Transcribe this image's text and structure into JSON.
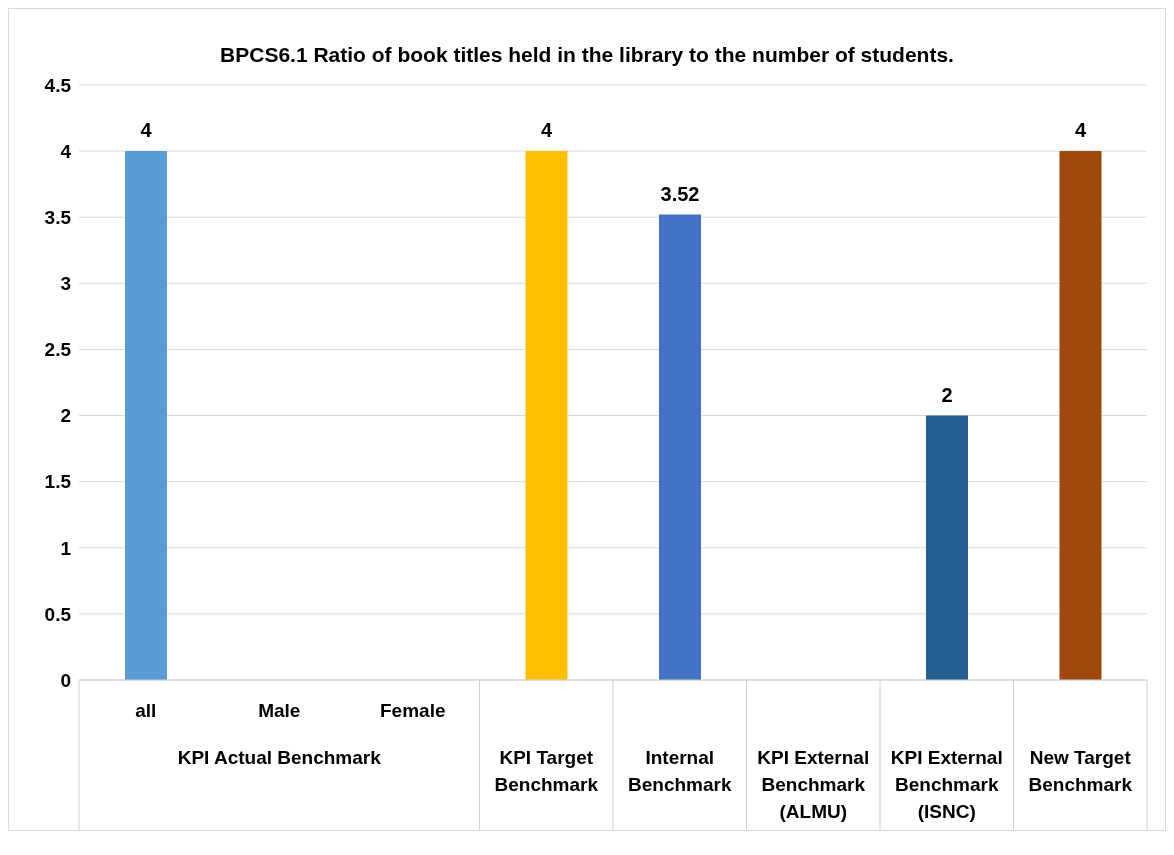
{
  "chart_data": {
    "type": "bar",
    "title": "BPCS6.1 Ratio of book titles held in the library to the number of students.",
    "categories": [
      "all",
      "Male",
      "Female",
      "KPI Target Benchmark",
      "Internal Benchmark",
      "KPI External Benchmark (ALMU)",
      "KPI External Benchmark (ISNC)",
      "New Target Benchmark"
    ],
    "values": [
      4,
      null,
      null,
      4,
      3.52,
      null,
      2,
      4
    ],
    "colors": [
      "#5b9bd5",
      "#5b9bd5",
      "#5b9bd5",
      "#ffc000",
      "#4472c4",
      "#4472c4",
      "#255e91",
      "#9e480e"
    ],
    "ylim": [
      0,
      4.5
    ],
    "yticks": [
      0,
      0.5,
      1,
      1.5,
      2,
      2.5,
      3,
      3.5,
      4,
      4.5
    ],
    "grid": "y",
    "data_labels": true,
    "annotations": [
      "KPI Actual Benchmark"
    ]
  }
}
